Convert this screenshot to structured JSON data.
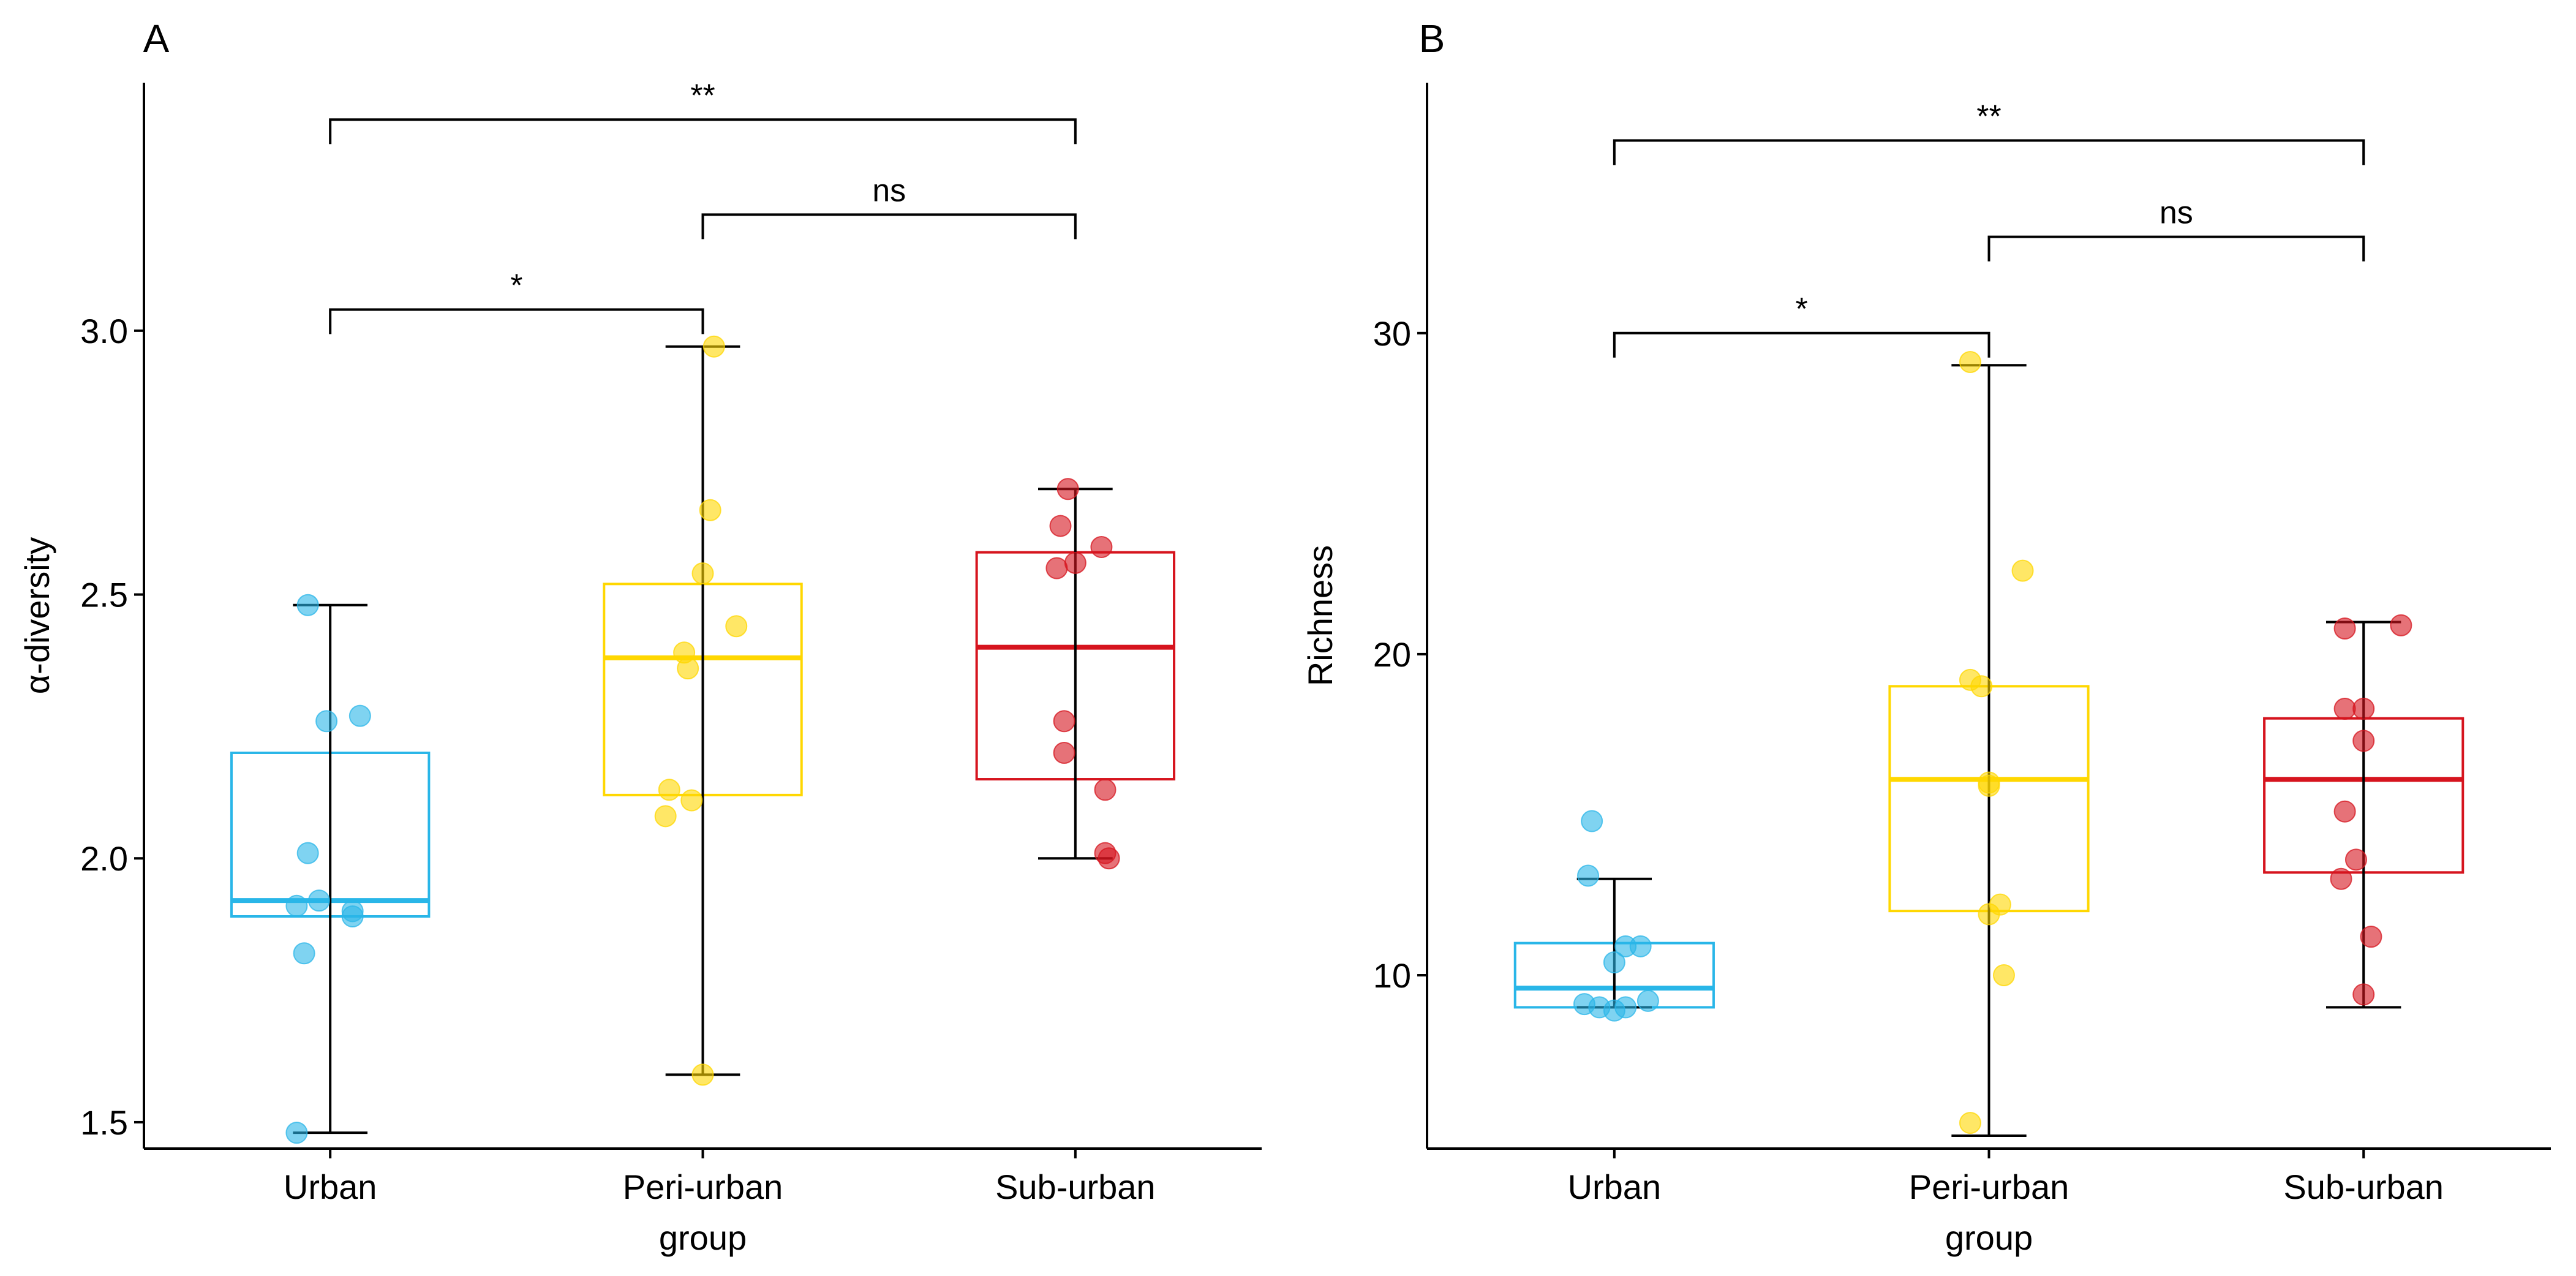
{
  "figure": {
    "xlabel": "group",
    "colors": {
      "Urban": "#29B6E8",
      "Peri-urban": "#FFD700",
      "Sub-urban": "#D6141E",
      "axis": "#000000"
    }
  },
  "chart_data": [
    {
      "panel_label": "A",
      "type": "box",
      "ylabel": "α-diversity",
      "xlabel": "group",
      "categories": [
        "Urban",
        "Peri-urban",
        "Sub-urban"
      ],
      "tick_labels": [
        "Urban",
        "Peri-urban",
        "Sub-urban"
      ],
      "ylim": [
        1.45,
        3.47
      ],
      "yticks": [
        1.5,
        2.0,
        2.5,
        3.0
      ],
      "ytick_labels": [
        "1.5",
        "2.0",
        "2.5",
        "3.0"
      ],
      "boxes": [
        {
          "group": "Urban",
          "min": 1.48,
          "q1": 1.89,
          "median": 1.92,
          "q3": 2.2,
          "max": 2.48
        },
        {
          "group": "Peri-urban",
          "min": 1.59,
          "q1": 2.12,
          "median": 2.38,
          "q3": 2.52,
          "max": 2.97
        },
        {
          "group": "Sub-urban",
          "min": 2.0,
          "q1": 2.15,
          "median": 2.4,
          "q3": 2.58,
          "max": 2.7
        }
      ],
      "points": [
        {
          "group": "Urban",
          "y": [
            2.48,
            2.26,
            2.27,
            2.01,
            1.92,
            1.91,
            1.9,
            1.89,
            1.82,
            1.48
          ],
          "jitter": [
            -0.06,
            -0.01,
            0.08,
            -0.06,
            -0.03,
            -0.09,
            0.06,
            0.06,
            -0.07,
            -0.09
          ]
        },
        {
          "group": "Peri-urban",
          "y": [
            2.97,
            2.66,
            2.54,
            2.44,
            2.39,
            2.36,
            2.13,
            2.11,
            2.08,
            1.59
          ],
          "jitter": [
            0.03,
            0.02,
            0.0,
            0.09,
            -0.05,
            -0.04,
            -0.09,
            -0.03,
            -0.1,
            0.0
          ]
        },
        {
          "group": "Sub-urban",
          "y": [
            2.7,
            2.63,
            2.59,
            2.56,
            2.55,
            2.26,
            2.2,
            2.13,
            2.01,
            2.0
          ],
          "jitter": [
            -0.02,
            -0.04,
            0.07,
            0.0,
            -0.05,
            -0.03,
            -0.03,
            0.08,
            0.08,
            0.09
          ]
        }
      ],
      "significance": [
        {
          "from": "Urban",
          "to": "Peri-urban",
          "y": 3.04,
          "label": "*"
        },
        {
          "from": "Peri-urban",
          "to": "Sub-urban",
          "y": 3.22,
          "label": "ns"
        },
        {
          "from": "Urban",
          "to": "Sub-urban",
          "y": 3.4,
          "label": "**"
        }
      ]
    },
    {
      "panel_label": "B",
      "type": "box",
      "ylabel": "Richness",
      "xlabel": "group",
      "categories": [
        "Urban",
        "Peri-urban",
        "Sub-urban"
      ],
      "tick_labels": [
        "Urban",
        "Peri-urban",
        "Sub-urban"
      ],
      "ylim": [
        4.6,
        37.8
      ],
      "yticks": [
        10,
        20,
        30
      ],
      "ytick_labels": [
        "10",
        "20",
        "30"
      ],
      "boxes": [
        {
          "group": "Urban",
          "min": 9.0,
          "q1": 9.0,
          "median": 9.6,
          "q3": 11.0,
          "max": 13.0
        },
        {
          "group": "Peri-urban",
          "min": 5.0,
          "q1": 12.0,
          "median": 16.1,
          "q3": 19.0,
          "max": 29.0
        },
        {
          "group": "Sub-urban",
          "min": 9.0,
          "q1": 13.2,
          "median": 16.1,
          "q3": 18.0,
          "max": 21.0
        }
      ],
      "points": [
        {
          "group": "Urban",
          "y": [
            14.8,
            13.1,
            10.9,
            10.9,
            10.4,
            9.2,
            9.1,
            9.0,
            9.0,
            8.9
          ],
          "jitter": [
            -0.06,
            -0.07,
            0.03,
            0.07,
            0.0,
            0.09,
            -0.08,
            0.03,
            -0.04,
            0.0
          ]
        },
        {
          "group": "Peri-urban",
          "y": [
            29.1,
            22.6,
            19.2,
            19.0,
            16.0,
            15.9,
            12.2,
            11.9,
            10.0,
            5.4
          ],
          "jitter": [
            -0.05,
            0.09,
            -0.05,
            -0.02,
            0.0,
            0.0,
            0.03,
            0.0,
            0.04,
            -0.05
          ]
        },
        {
          "group": "Sub-urban",
          "y": [
            20.9,
            20.8,
            18.3,
            18.3,
            17.3,
            15.1,
            13.6,
            13.0,
            11.2,
            9.4
          ],
          "jitter": [
            0.1,
            -0.05,
            -0.05,
            0.0,
            0.0,
            -0.05,
            -0.02,
            -0.06,
            0.02,
            0.0
          ]
        }
      ],
      "significance": [
        {
          "from": "Urban",
          "to": "Peri-urban",
          "y": 30.0,
          "label": "*"
        },
        {
          "from": "Peri-urban",
          "to": "Sub-urban",
          "y": 33.0,
          "label": "ns"
        },
        {
          "from": "Urban",
          "to": "Sub-urban",
          "y": 36.0,
          "label": "**"
        }
      ]
    }
  ]
}
